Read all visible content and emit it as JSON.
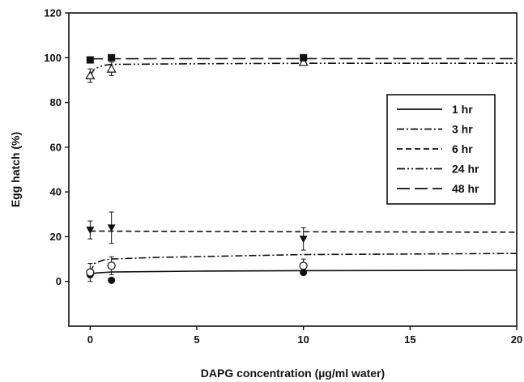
{
  "chart_data": {
    "type": "line",
    "title": "",
    "xlabel": "DAPG concentration (µg/ml water)",
    "ylabel": "Egg hatch (%)",
    "xlim": [
      -1,
      20
    ],
    "ylim": [
      -20,
      120
    ],
    "xticks": [
      "0",
      "5",
      "10",
      "15",
      "20"
    ],
    "yticks": [
      "0",
      "20",
      "40",
      "60",
      "80",
      "100",
      "120"
    ],
    "legend_position": "right",
    "series": [
      {
        "name": "1 hr",
        "dash": "solid",
        "marker": "filled-circle",
        "points": [
          {
            "x": 0,
            "y": 3,
            "err": 1
          },
          {
            "x": 1,
            "y": 0.5,
            "err": 0
          },
          {
            "x": 10,
            "y": 4,
            "err": 1
          }
        ],
        "fit": [
          [
            0,
            3
          ],
          [
            0.3,
            3.8
          ],
          [
            1,
            4.2
          ],
          [
            5,
            4.6
          ],
          [
            10,
            4.8
          ],
          [
            20,
            5
          ]
        ]
      },
      {
        "name": "3 hr",
        "dash": "dash-dot",
        "marker": "open-circle",
        "points": [
          {
            "x": 0,
            "y": 4,
            "err": 4
          },
          {
            "x": 1,
            "y": 7,
            "err": 4
          },
          {
            "x": 10,
            "y": 7,
            "err": 3
          }
        ],
        "fit": [
          [
            0,
            4
          ],
          [
            0.2,
            8
          ],
          [
            0.6,
            9.5
          ],
          [
            1,
            10
          ],
          [
            3,
            10.7
          ],
          [
            10,
            12
          ],
          [
            20,
            12.5
          ]
        ]
      },
      {
        "name": "6 hr",
        "dash": "dashed",
        "marker": "filled-triangle-down",
        "points": [
          {
            "x": 0,
            "y": 23,
            "err": 4
          },
          {
            "x": 1,
            "y": 24,
            "err": 7
          },
          {
            "x": 10,
            "y": 19,
            "err": 5
          }
        ],
        "fit": [
          [
            0,
            22.5
          ],
          [
            5,
            22.3
          ],
          [
            10,
            22.2
          ],
          [
            20,
            22
          ]
        ]
      },
      {
        "name": "24 hr",
        "dash": "dash-dot-dot",
        "marker": "open-triangle-up",
        "points": [
          {
            "x": 0,
            "y": 92,
            "err": 3
          },
          {
            "x": 1,
            "y": 95,
            "err": 3
          },
          {
            "x": 10,
            "y": 98,
            "err": 1
          }
        ],
        "fit": [
          [
            0,
            92
          ],
          [
            0.2,
            95
          ],
          [
            0.6,
            96.5
          ],
          [
            1,
            97
          ],
          [
            5,
            97.3
          ],
          [
            10,
            97.5
          ],
          [
            20,
            97.5
          ]
        ]
      },
      {
        "name": "48 hr",
        "dash": "long-dash",
        "marker": "filled-square",
        "points": [
          {
            "x": 0,
            "y": 99,
            "err": 0
          },
          {
            "x": 1,
            "y": 100,
            "err": 0
          },
          {
            "x": 10,
            "y": 100,
            "err": 0
          }
        ],
        "fit": [
          [
            0,
            99.5
          ],
          [
            5,
            99.6
          ],
          [
            10,
            99.6
          ],
          [
            20,
            99.6
          ]
        ]
      }
    ]
  }
}
